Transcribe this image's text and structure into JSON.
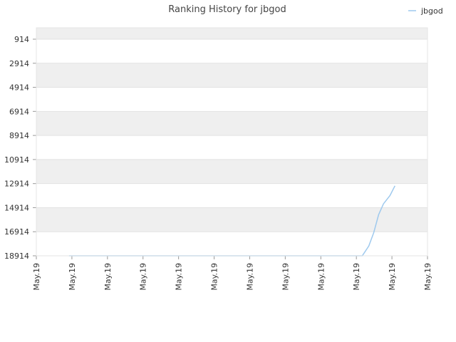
{
  "chart_data": {
    "type": "line",
    "title": "Ranking History for jbgod",
    "xlabel": "",
    "ylabel": "",
    "y_inverted": true,
    "ylim": [
      914,
      18914
    ],
    "y_ticks": [
      "914",
      "2914",
      "4914",
      "6914",
      "8914",
      "10914",
      "12914",
      "14914",
      "16914",
      "18914"
    ],
    "x_ticks": [
      "May.19",
      "May.19",
      "May.19",
      "May.19",
      "May.19",
      "May.19",
      "May.19",
      "May.19",
      "May.19",
      "May.19",
      "May.19",
      "May.19"
    ],
    "grid": "horizontal alternating bands",
    "legend": {
      "position": "top-right",
      "entries": [
        "jbgod"
      ]
    },
    "series": [
      {
        "name": "jbgod",
        "color": "#9ec9ee",
        "x": [
          1,
          2,
          3,
          4,
          5,
          6,
          7,
          8,
          9,
          10,
          10.2,
          10.35,
          10.5,
          10.65,
          10.85,
          11
        ],
        "values": [
          18914,
          18914,
          18914,
          18914,
          18914,
          18914,
          18914,
          18914,
          18914,
          18914,
          18100,
          17000,
          15500,
          14600,
          13900,
          13100
        ]
      }
    ],
    "x_range": [
      0,
      12
    ]
  }
}
